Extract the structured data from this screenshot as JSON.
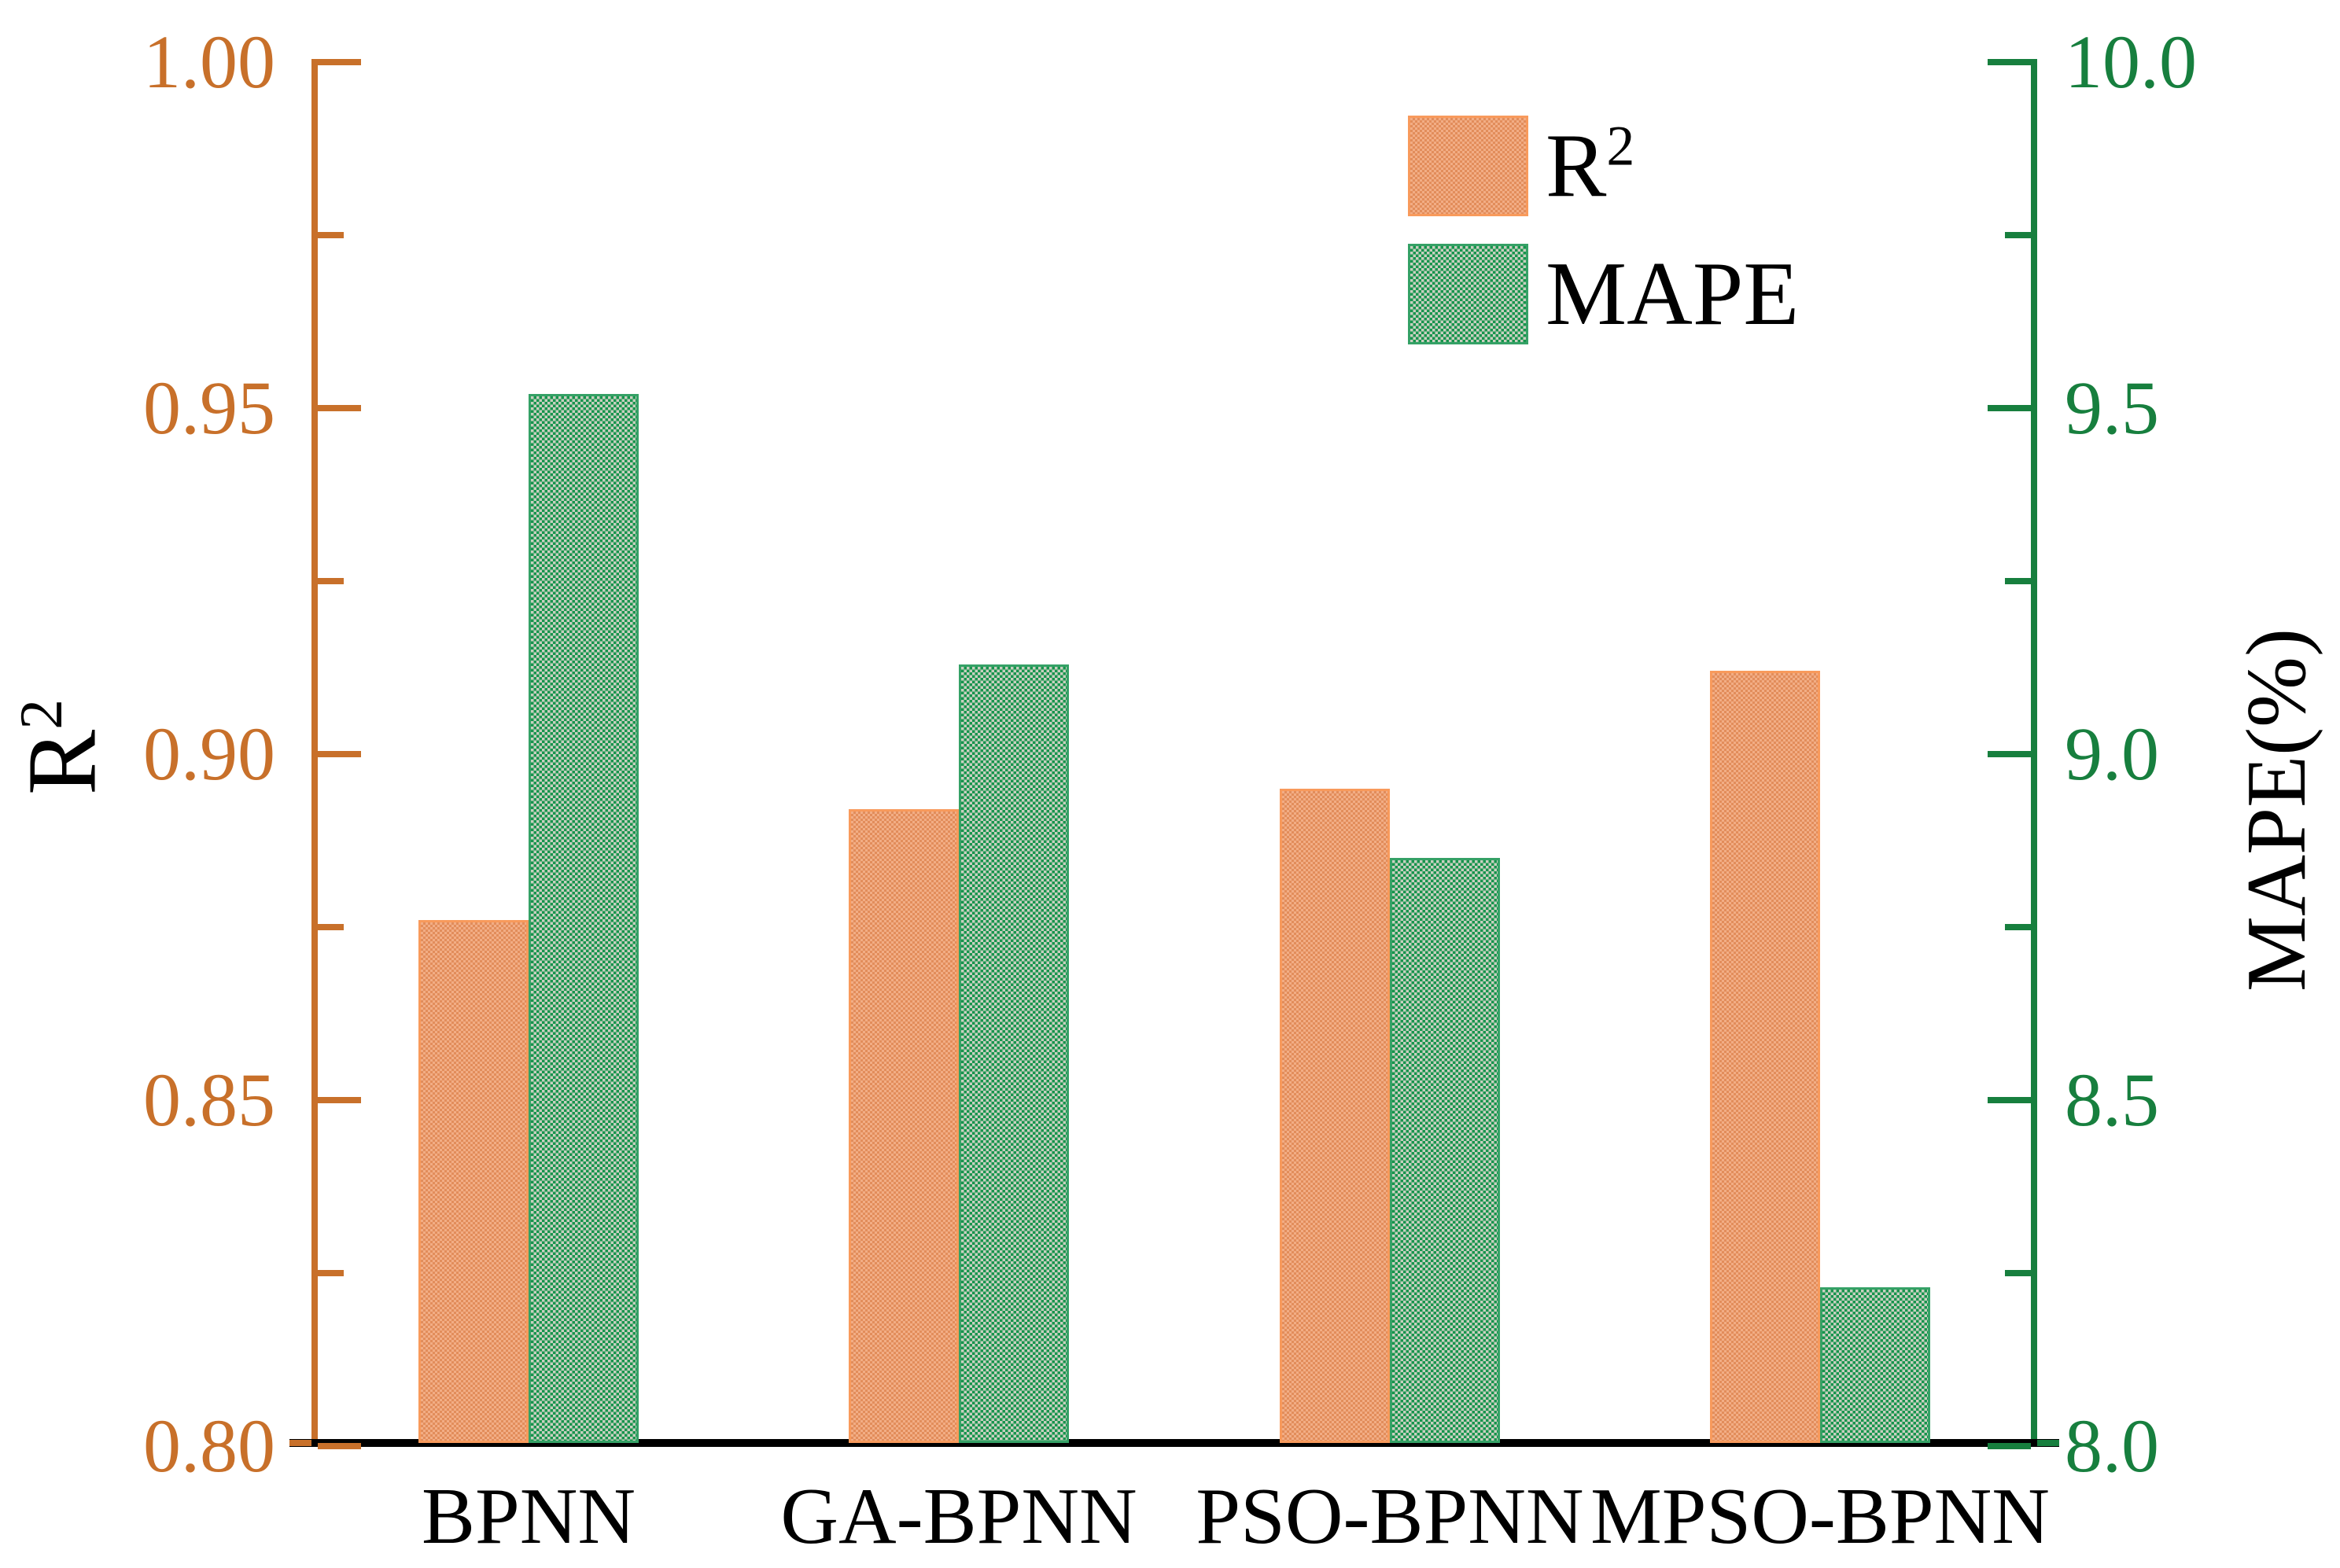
{
  "chart_data": {
    "type": "bar",
    "title": "",
    "categories": [
      "BPNN",
      "GA-BPNN",
      "PSO-BPNN",
      "MPSO-BPNN"
    ],
    "series": [
      {
        "name": "R2",
        "legend_base": "R",
        "legend_sup": "2",
        "axis": "left",
        "swatch": "orange",
        "values": [
          0.876,
          0.892,
          0.895,
          0.912
        ]
      },
      {
        "name": "MAPE",
        "legend_base": "MAPE",
        "legend_sup": "",
        "axis": "right",
        "swatch": "green",
        "values": [
          9.52,
          9.13,
          8.85,
          8.23
        ]
      }
    ],
    "axes": {
      "left": {
        "title_base": "R",
        "title_sup": "2",
        "range": [
          0.8,
          1.0
        ],
        "major_ticks": [
          1.0,
          0.95,
          0.9,
          0.85,
          0.8
        ],
        "tick_labels": [
          "1.00",
          "0.95",
          "0.90",
          "0.85",
          "0.80"
        ],
        "minor_ticks": [
          0.975,
          0.925,
          0.875,
          0.825
        ],
        "color": "#c8702a"
      },
      "right": {
        "title": "MAPE(%)",
        "range": [
          8.0,
          10.0
        ],
        "major_ticks": [
          10.0,
          9.5,
          9.0,
          8.5,
          8.0
        ],
        "tick_labels": [
          "10.0",
          "9.5",
          "9.0",
          "8.5",
          "8.0"
        ],
        "minor_ticks": [
          9.75,
          9.25,
          8.75,
          8.25
        ],
        "color": "#177f3e"
      }
    },
    "legend_position": "top-right",
    "grid": false
  },
  "colors": {
    "left_axis": "#c8702a",
    "right_axis": "#177f3e",
    "x_axis": "#000000",
    "bar_orange_fill": "#eda077",
    "bar_orange_dot": "#e28d5b",
    "bar_orange_border": "#f89a5c",
    "bar_green_fill": "#5fae7f",
    "bar_green_check": "#17944d",
    "bar_green_light": "#c9cfc0",
    "bar_green_border": "#35a166",
    "text": "#000000",
    "background": "#ffffff"
  }
}
